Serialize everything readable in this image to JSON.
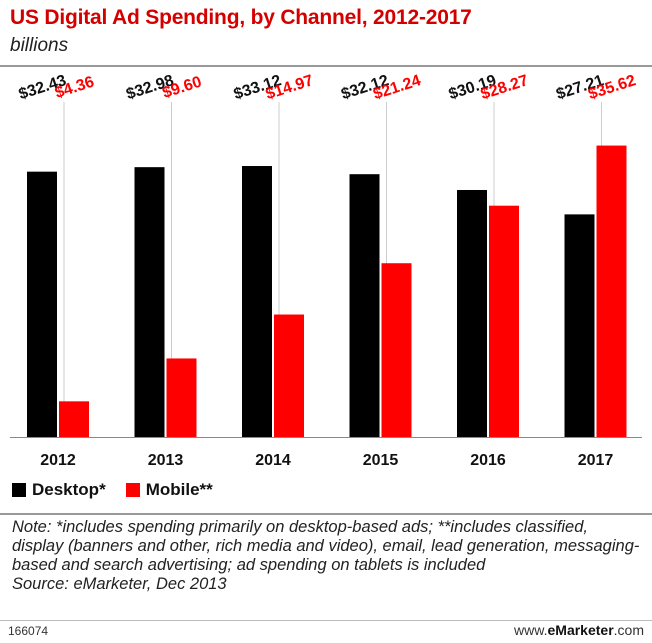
{
  "header": {
    "title": "US Digital Ad Spending, by Channel, 2012-2017",
    "subtitle": "billions"
  },
  "legend": {
    "desktop": "Desktop*",
    "mobile": "Mobile**"
  },
  "colors": {
    "desktop": "#000000",
    "mobile": "#ff0000",
    "title": "#d40000"
  },
  "chart_data": {
    "type": "bar",
    "title": "US Digital Ad Spending, by Channel, 2012-2017",
    "subtitle": "billions",
    "categories": [
      "2012",
      "2013",
      "2014",
      "2015",
      "2016",
      "2017"
    ],
    "series": [
      {
        "name": "Desktop*",
        "values": [
          32.43,
          32.98,
          33.12,
          32.12,
          30.19,
          27.21
        ],
        "labels": [
          "$32.43",
          "$32.98",
          "$33.12",
          "$32.12",
          "$30.19",
          "$27.21"
        ]
      },
      {
        "name": "Mobile**",
        "values": [
          4.36,
          9.6,
          14.97,
          21.24,
          28.27,
          35.62
        ],
        "labels": [
          "$4.36",
          "$9.60",
          "$14.97",
          "$21.24",
          "$28.27",
          "$35.62"
        ]
      }
    ],
    "ylim": [
      0,
      40
    ],
    "grid": false,
    "legend": "bottom-left"
  },
  "notes": {
    "note": "Note: *includes spending primarily on desktop-based ads; **includes classified, display (banners and other, rich media and video), email, lead generation, messaging-based and search advertising; ad spending on tablets is included",
    "source": "Source: eMarketer, Dec 2013"
  },
  "footer": {
    "id": "166074",
    "brand_prefix": "www.",
    "brand_name": "eMarketer",
    "brand_suffix": ".com"
  }
}
